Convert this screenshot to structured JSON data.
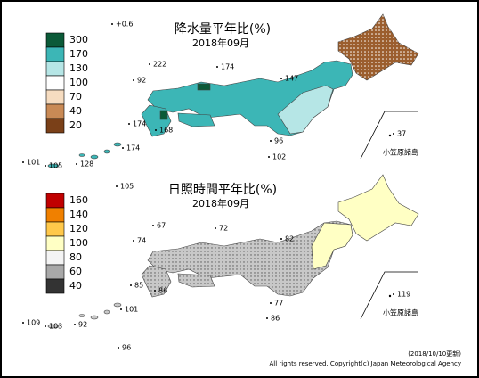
{
  "maps": [
    {
      "title": "降水量平年比(%)",
      "date": "2018年09月",
      "legend": [
        {
          "label": "300",
          "color": "#0b5a38"
        },
        {
          "label": "170",
          "color": "#3cb6b6"
        },
        {
          "label": "130",
          "color": "#b6e6e6"
        },
        {
          "label": "100",
          "color": "#ffffff"
        },
        {
          "label": "70",
          "color": "#f6dcc0"
        },
        {
          "label": "40",
          "color": "#c98a55"
        },
        {
          "label": "20",
          "color": "#7a4018"
        }
      ],
      "stations": [
        "+0.6",
        "222",
        "174",
        "92",
        "147",
        "174",
        "168",
        "174",
        "96",
        "102",
        "37",
        "101",
        "105",
        "128"
      ],
      "inset_label": "小笠原諸島"
    },
    {
      "title": "日照時間平年比(%)",
      "date": "2018年09月",
      "legend": [
        {
          "label": "160",
          "color": "#c00000"
        },
        {
          "label": "140",
          "color": "#f08000"
        },
        {
          "label": "120",
          "color": "#ffc84a"
        },
        {
          "label": "100",
          "color": "#ffffc4"
        },
        {
          "label": "80",
          "color": "#f4f4f4"
        },
        {
          "label": "60",
          "color": "#a8a8a8"
        },
        {
          "label": "40",
          "color": "#333333"
        }
      ],
      "stations": [
        "105",
        "67",
        "72",
        "74",
        "82",
        "85",
        "86",
        "101",
        "77",
        "86",
        "119",
        "109",
        "103",
        "92",
        "96"
      ],
      "inset_label": "小笠原諸島"
    }
  ],
  "footer": {
    "updated": "(2018/10/10更新)",
    "copyright": "All rights reserved. Copyright(c) Japan Meteorological Agency"
  }
}
